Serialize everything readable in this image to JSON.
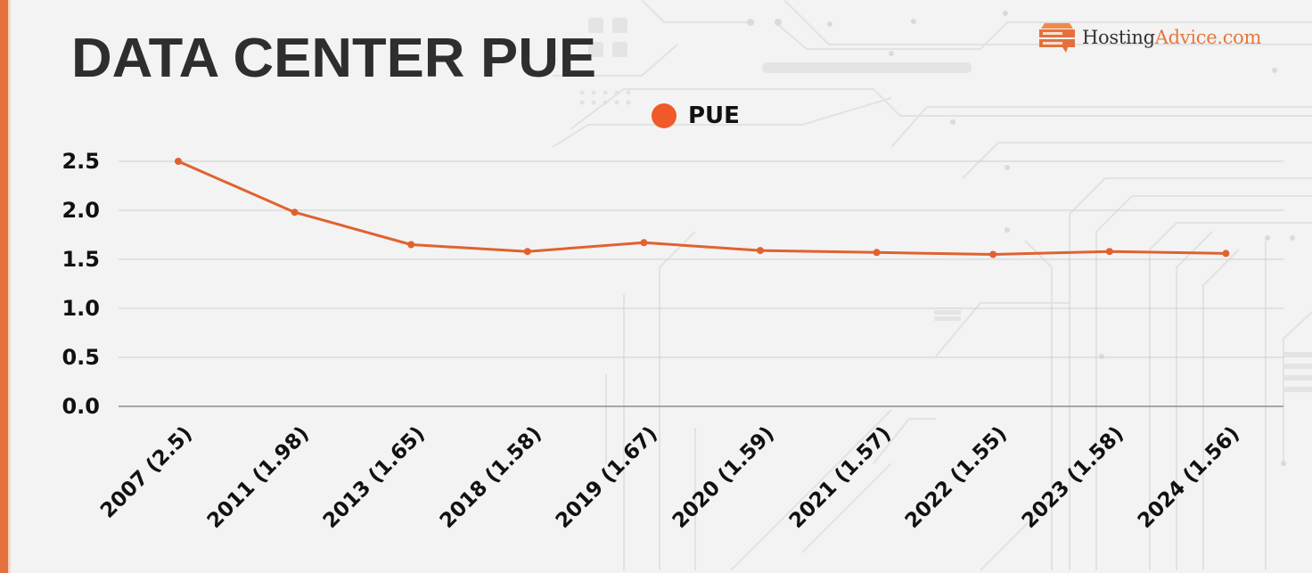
{
  "header": {
    "title": "DATA CENTER PUE"
  },
  "logo": {
    "icon": "server-speech-bubble-icon",
    "text_dark": "Hosting",
    "text_accent": "Advice.com"
  },
  "legend": {
    "label": "PUE",
    "color": "#f05a28"
  },
  "colors": {
    "accent": "#e4703e",
    "line": "#e0622f",
    "grid": "#cfcfcf",
    "baseline": "#8c8c8c",
    "background": "#f3f3f3"
  },
  "y_axis": {
    "ticks": [
      "2.5",
      "2.0",
      "1.5",
      "1.0",
      "0.5",
      "0.0"
    ]
  },
  "x_axis": {
    "labels": [
      "2007 (2.5)",
      "2011 (1.98)",
      "2013 (1.65)",
      "2018 (1.58)",
      "2019 (1.67)",
      "2020 (1.59)",
      "2021 (1.57)",
      "2022 (1.55)",
      "2023 (1.58)",
      "2024 (1.56)"
    ]
  },
  "chart_data": {
    "type": "line",
    "title": "DATA CENTER PUE",
    "xlabel": "",
    "ylabel": "",
    "categories": [
      "2007 (2.5)",
      "2011 (1.98)",
      "2013 (1.65)",
      "2018 (1.58)",
      "2019 (1.67)",
      "2020 (1.59)",
      "2021 (1.57)",
      "2022 (1.55)",
      "2023 (1.58)",
      "2024 (1.56)"
    ],
    "x": [
      2007,
      2011,
      2013,
      2018,
      2019,
      2020,
      2021,
      2022,
      2023,
      2024
    ],
    "series": [
      {
        "name": "PUE",
        "values": [
          2.5,
          1.98,
          1.65,
          1.58,
          1.67,
          1.59,
          1.57,
          1.55,
          1.58,
          1.56
        ],
        "color": "#e0622f"
      }
    ],
    "ylim": [
      0,
      2.5
    ],
    "yticks": [
      0.0,
      0.5,
      1.0,
      1.5,
      2.0,
      2.5
    ],
    "grid": true,
    "legend_position": "top-center"
  }
}
